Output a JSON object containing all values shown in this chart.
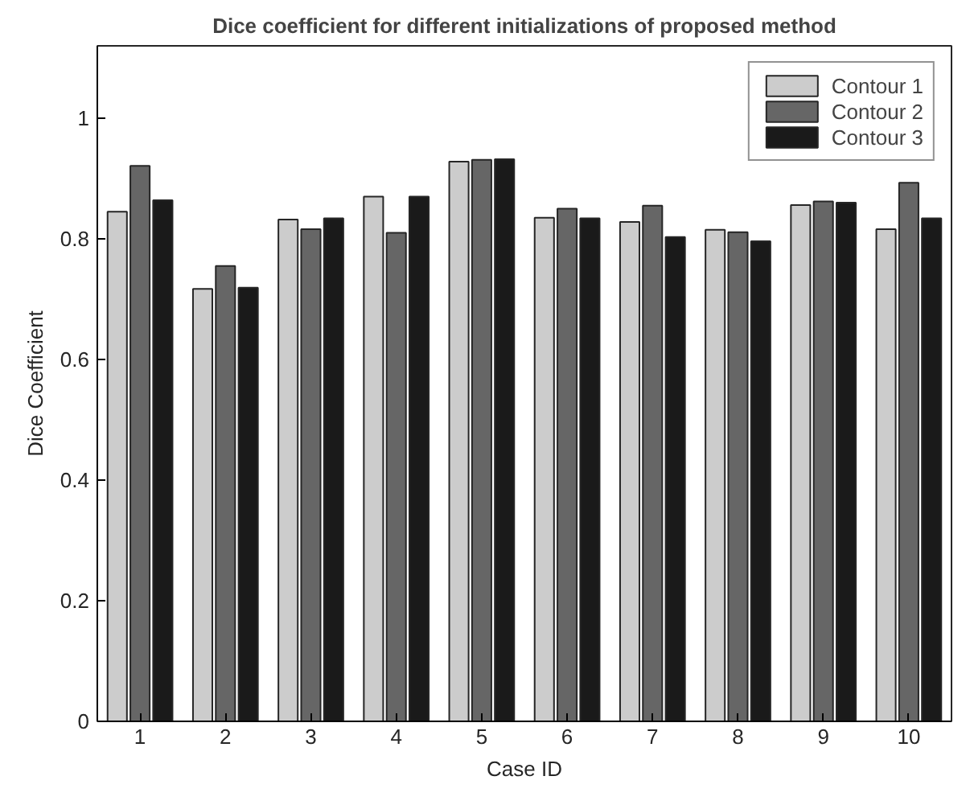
{
  "chart_data": {
    "type": "bar",
    "title": "Dice coefficient for different initializations of proposed method",
    "xlabel": "Case ID",
    "ylabel": "Dice Coefficient",
    "categories": [
      "1",
      "2",
      "3",
      "4",
      "5",
      "6",
      "7",
      "8",
      "9",
      "10"
    ],
    "series": [
      {
        "name": "Contour 1",
        "color": "#cccccc",
        "values": [
          0.845,
          0.717,
          0.832,
          0.87,
          0.928,
          0.835,
          0.828,
          0.815,
          0.856,
          0.816
        ]
      },
      {
        "name": "Contour 2",
        "color": "#666666",
        "values": [
          0.921,
          0.755,
          0.816,
          0.81,
          0.931,
          0.85,
          0.855,
          0.811,
          0.862,
          0.893
        ]
      },
      {
        "name": "Contour 3",
        "color": "#1a1a1a",
        "values": [
          0.864,
          0.719,
          0.834,
          0.87,
          0.932,
          0.834,
          0.803,
          0.796,
          0.86,
          0.834
        ]
      }
    ],
    "ylim": [
      0,
      1.12
    ],
    "yticks": [
      0,
      0.2,
      0.4,
      0.6,
      0.8,
      1
    ],
    "grid": false,
    "legend": "top right"
  }
}
